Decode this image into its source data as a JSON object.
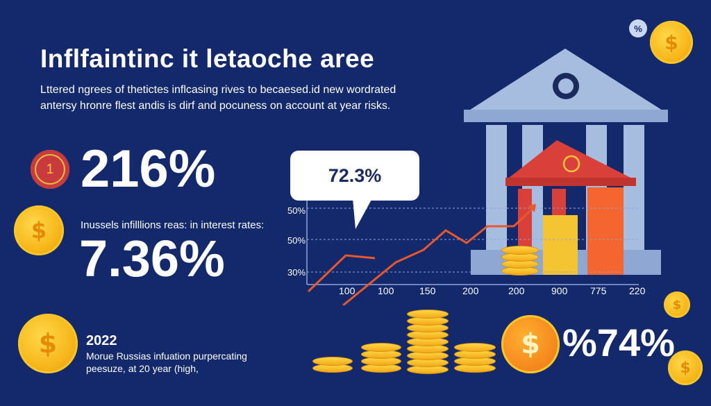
{
  "header": {
    "title": "Inflfaintinc it letaoche aree",
    "subtitle_line1": "Lttered ngrees of thetictes inflcasing rives to becaesed.id new wordrated",
    "subtitle_line2": "antersy hronre flest andis is dirf and pocuness on account at year risks."
  },
  "stats": {
    "badge_number": "1",
    "primary_value": "216%",
    "rates_label": "Inussels infilllions reas: in interest rates:",
    "rates_value": "7.36%",
    "year": "2022",
    "note_line1": "Morue Russias infuation purpercating",
    "note_line2": "peesuze, at 20 year (high,",
    "right_value": "%74%"
  },
  "chart_data": {
    "type": "line",
    "callout": "72.3%",
    "y_tick_labels": [
      "50%",
      "50%",
      "30%"
    ],
    "x_tick_labels": [
      "100",
      "100",
      "150",
      "200",
      "200",
      "900",
      "775",
      "220"
    ],
    "series": [
      {
        "values": []
      }
    ]
  },
  "icons": {
    "top_badge": "%",
    "coin_symbol": "$"
  },
  "colors": {
    "background": "#13296b",
    "coin": "#f6b61a",
    "line": "#e8582c",
    "bank": "#a7bde0",
    "bank_roof_red": "#d9403a",
    "bar_yellow": "#f4c432",
    "bar_orange": "#f4652f"
  }
}
